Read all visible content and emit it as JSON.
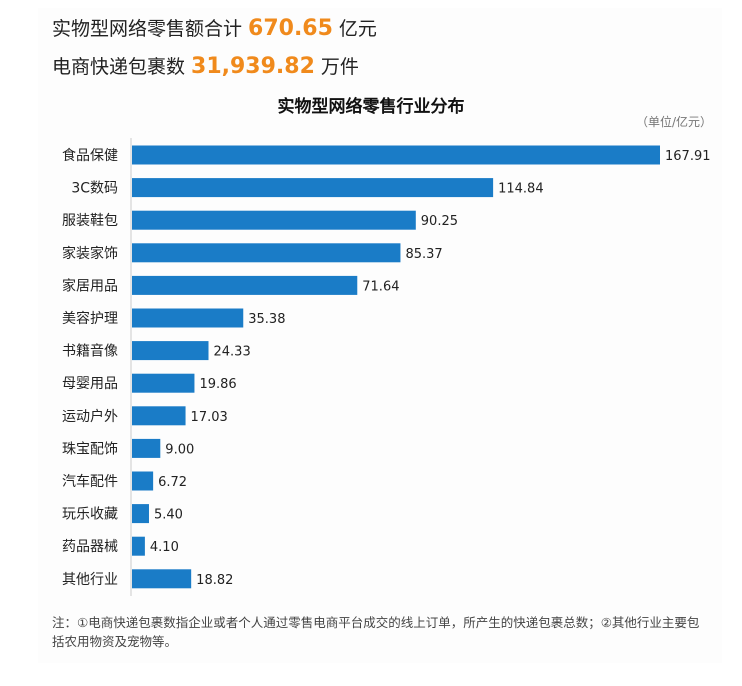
{
  "header": {
    "line1": {
      "label": "实物型网络零售额合计",
      "value": "670.65",
      "unit": "亿元"
    },
    "line2": {
      "label": "电商快递包裹数",
      "value": "31,939.82",
      "unit": "万件"
    }
  },
  "colors": {
    "bar": "#1a7cc7",
    "highlight": "#f08a1c"
  },
  "chart_data": {
    "type": "bar",
    "orientation": "horizontal",
    "title": "实物型网络零售行业分布",
    "unit_label": "（单位/亿元）",
    "categories": [
      "食品保健",
      "3C数码",
      "服装鞋包",
      "家装家饰",
      "家居用品",
      "美容护理",
      "书籍音像",
      "母婴用品",
      "运动户外",
      "珠宝配饰",
      "汽车配件",
      "玩乐收藏",
      "药品器械",
      "其他行业"
    ],
    "values": [
      167.91,
      114.84,
      90.25,
      85.37,
      71.64,
      35.38,
      24.33,
      19.86,
      17.03,
      9.0,
      6.72,
      5.4,
      4.1,
      18.82
    ],
    "value_labels": [
      "167.91",
      "114.84",
      "90.25",
      "85.37",
      "71.64",
      "35.38",
      "24.33",
      "19.86",
      "17.03",
      "9.00",
      "6.72",
      "5.40",
      "4.10",
      "18.82"
    ],
    "xlim": [
      0,
      170
    ],
    "grid": false
  },
  "note": "注：①电商快递包裹数指企业或者个人通过零售电商平台成交的线上订单，所产生的快递包裹总数；②其他行业主要包括农用物资及宠物等。"
}
